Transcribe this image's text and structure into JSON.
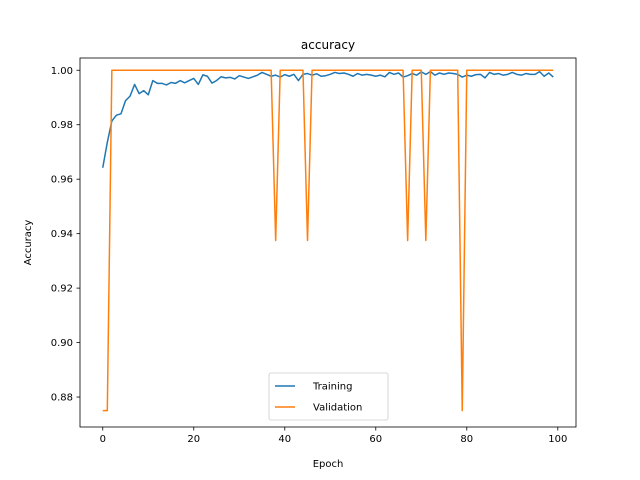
{
  "chart_data": {
    "type": "line",
    "title": "accuracy",
    "xlabel": "Epoch",
    "ylabel": "Accuracy",
    "xlim": [
      -5,
      104
    ],
    "ylim": [
      0.869,
      1.0045
    ],
    "xticks": [
      0,
      20,
      40,
      60,
      80,
      100
    ],
    "yticks": [
      0.88,
      0.9,
      0.92,
      0.94,
      0.96,
      0.98,
      1.0
    ],
    "ytick_labels": [
      "0.88",
      "0.90",
      "0.92",
      "0.94",
      "0.96",
      "0.98",
      "1.00"
    ],
    "grid": false,
    "legend_position": "lower center",
    "series": [
      {
        "name": "Training",
        "color": "#1f77b4",
        "values": [
          0.9642,
          0.9735,
          0.9814,
          0.9835,
          0.984,
          0.9888,
          0.9905,
          0.9948,
          0.9914,
          0.9925,
          0.991,
          0.9962,
          0.9952,
          0.9952,
          0.9946,
          0.9955,
          0.9952,
          0.9962,
          0.9954,
          0.9962,
          0.997,
          0.9948,
          0.9983,
          0.9978,
          0.9953,
          0.9962,
          0.9976,
          0.9972,
          0.9974,
          0.9968,
          0.998,
          0.9975,
          0.997,
          0.9976,
          0.9982,
          0.9992,
          0.9985,
          0.9978,
          0.9982,
          0.9975,
          0.9984,
          0.9978,
          0.9985,
          0.9962,
          0.9985,
          0.9988,
          0.9982,
          0.9987,
          0.9978,
          0.998,
          0.9985,
          0.9992,
          0.9988,
          0.999,
          0.9985,
          0.9978,
          0.9988,
          0.9982,
          0.9985,
          0.9982,
          0.9978,
          0.9982,
          0.9976,
          0.9992,
          0.9985,
          0.999,
          0.9975,
          0.998,
          0.9988,
          0.9982,
          0.9994,
          0.9985,
          0.9995,
          0.9982,
          0.999,
          0.9985,
          0.999,
          0.9988,
          0.9985,
          0.9975,
          0.9982,
          0.9978,
          0.9984,
          0.9985,
          0.9972,
          0.9992,
          0.9985,
          0.9988,
          0.9982,
          0.9985,
          0.9992,
          0.9985,
          0.9982,
          0.9988,
          0.9985,
          0.9985,
          0.9995,
          0.9978,
          0.999,
          0.9975
        ]
      },
      {
        "name": "Validation",
        "color": "#ff7f0e",
        "values": [
          0.875,
          0.875,
          1.0,
          1.0,
          1.0,
          1.0,
          1.0,
          1.0,
          1.0,
          1.0,
          1.0,
          1.0,
          1.0,
          1.0,
          1.0,
          1.0,
          1.0,
          1.0,
          1.0,
          1.0,
          1.0,
          1.0,
          1.0,
          1.0,
          1.0,
          1.0,
          1.0,
          1.0,
          1.0,
          1.0,
          1.0,
          1.0,
          1.0,
          1.0,
          1.0,
          1.0,
          1.0,
          1.0,
          0.9375,
          1.0,
          1.0,
          1.0,
          1.0,
          1.0,
          1.0,
          0.9375,
          1.0,
          1.0,
          1.0,
          1.0,
          1.0,
          1.0,
          1.0,
          1.0,
          1.0,
          1.0,
          1.0,
          1.0,
          1.0,
          1.0,
          1.0,
          1.0,
          1.0,
          1.0,
          1.0,
          1.0,
          1.0,
          0.9375,
          1.0,
          1.0,
          1.0,
          0.9375,
          1.0,
          1.0,
          1.0,
          1.0,
          1.0,
          1.0,
          1.0,
          0.875,
          1.0,
          1.0,
          1.0,
          1.0,
          1.0,
          1.0,
          1.0,
          1.0,
          1.0,
          1.0,
          1.0,
          1.0,
          1.0,
          1.0,
          1.0,
          1.0,
          1.0,
          1.0,
          1.0,
          1.0
        ]
      }
    ]
  }
}
